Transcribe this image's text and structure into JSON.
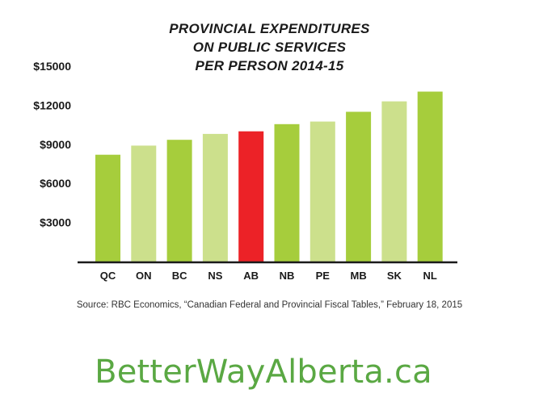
{
  "chart_data": {
    "type": "bar",
    "title_lines": [
      "PROVINCIAL EXPENDITURES",
      "ON PUBLIC SERVICES",
      "PER PERSON 2014-15"
    ],
    "categories": [
      "QC",
      "ON",
      "BC",
      "NS",
      "AB",
      "NB",
      "PE",
      "MB",
      "SK",
      "NL"
    ],
    "values": [
      8200,
      8900,
      9350,
      9800,
      10000,
      10550,
      10750,
      11500,
      12300,
      13050
    ],
    "bar_colors": [
      "#a6cd3c",
      "#cce08c",
      "#a6cd3c",
      "#cce08c",
      "#ec2227",
      "#a6cd3c",
      "#cce08c",
      "#a6cd3c",
      "#cce08c",
      "#a6cd3c"
    ],
    "y_ticks": [
      3000,
      6000,
      9000,
      12000,
      15000
    ],
    "y_tick_labels": [
      "$3000",
      "$6000",
      "$9000",
      "$12000",
      "$15000"
    ],
    "ylim": [
      0,
      15000
    ],
    "grid": false,
    "xlabel": "",
    "ylabel": ""
  },
  "source": "Source: RBC Economics, “Canadian Federal and Provincial Fiscal Tables,” February 18, 2015",
  "brand": "BetterWayAlberta.ca",
  "colors": {
    "dark_green": "#a6cd3c",
    "light_green": "#cce08c",
    "highlight_red": "#ec2227",
    "brand_green": "#5aa843",
    "axis": "#1a1a1a"
  }
}
